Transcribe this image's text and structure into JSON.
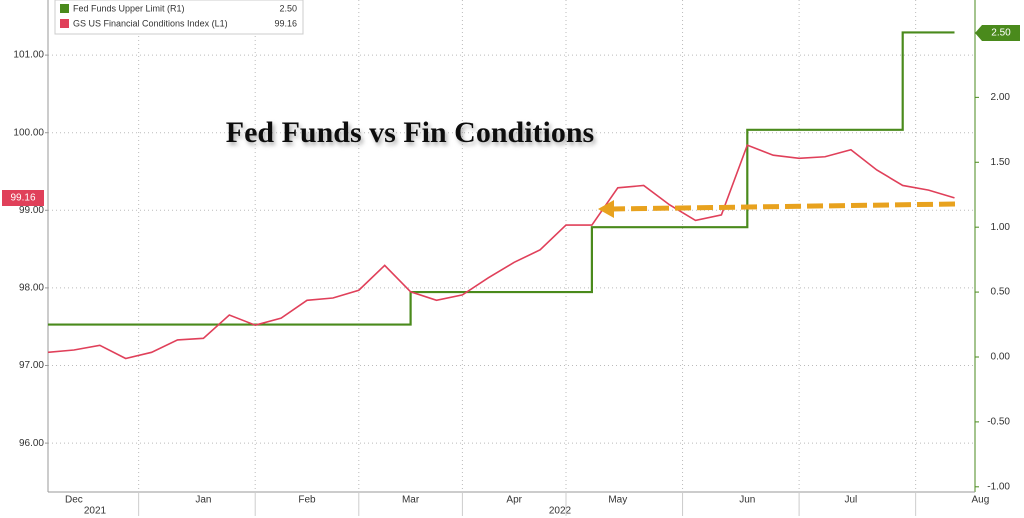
{
  "chart_data": {
    "type": "line",
    "title": "Fed Funds vs Fin Conditions",
    "categories": [
      null,
      "Dec",
      null,
      null,
      null,
      null,
      "Jan",
      null,
      null,
      null,
      "Feb",
      null,
      null,
      null,
      "Mar",
      null,
      null,
      null,
      "Apr",
      null,
      null,
      null,
      "May",
      null,
      null,
      null,
      null,
      "Jun",
      null,
      null,
      null,
      "Jul",
      null,
      null,
      null,
      null,
      "Aug"
    ],
    "years": [
      "2021",
      "2022"
    ],
    "series": [
      {
        "name": "Fed Funds Upper Limit (R1)",
        "last_label": "2.50",
        "color": "#4a8a1c",
        "axis": "y2",
        "step": true,
        "values": [
          0.25,
          0.25,
          0.25,
          0.25,
          0.25,
          0.25,
          0.25,
          0.25,
          0.25,
          0.25,
          0.25,
          0.25,
          0.25,
          0.25,
          0.5,
          0.5,
          0.5,
          0.5,
          0.5,
          0.5,
          0.5,
          1,
          1,
          1,
          1,
          1,
          1,
          1.75,
          1.75,
          1.75,
          1.75,
          1.75,
          1.75,
          2.5,
          2.5,
          2.5,
          null
        ]
      },
      {
        "name": "GS US Financial Conditions Index (L1)",
        "last_label": "99.16",
        "color": "#e0405a",
        "axis": "y",
        "values": [
          97.17,
          97.2,
          97.26,
          97.09,
          97.17,
          97.33,
          97.35,
          97.65,
          97.52,
          97.61,
          97.84,
          97.87,
          97.97,
          98.29,
          97.95,
          97.84,
          97.91,
          98.13,
          98.33,
          98.49,
          98.81,
          98.81,
          99.29,
          99.32,
          99.07,
          98.87,
          98.94,
          99.84,
          99.71,
          99.67,
          99.69,
          99.78,
          99.52,
          99.32,
          99.26,
          99.16,
          null
        ]
      }
    ],
    "ylim": [
      95.37,
      101.71
    ],
    "yticks": [
      {
        "value": 96,
        "label": "96.00"
      },
      {
        "value": 97,
        "label": "97.00"
      },
      {
        "value": 98,
        "label": "98.00"
      },
      {
        "value": 99,
        "label": "99.00"
      },
      {
        "value": 100,
        "label": "100.00"
      },
      {
        "value": 101,
        "label": "101.00"
      }
    ],
    "y2lim": [
      -1.04,
      2.75
    ],
    "y2ticks": [
      {
        "value": -1,
        "label": "-1.00"
      },
      {
        "value": -0.5,
        "label": "-0.50"
      },
      {
        "value": 0,
        "label": "0.00"
      },
      {
        "value": 0.5,
        "label": "0.50"
      },
      {
        "value": 1,
        "label": "1.00"
      },
      {
        "value": 1.5,
        "label": "1.50"
      },
      {
        "value": 2,
        "label": "2.00"
      }
    ],
    "grid": true
  }
}
